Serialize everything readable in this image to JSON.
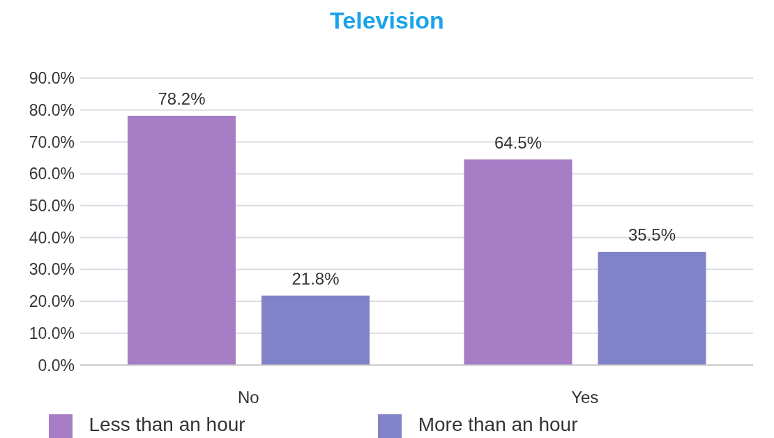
{
  "chart_data": {
    "type": "bar",
    "title": "Television",
    "categories": [
      "No",
      "Yes"
    ],
    "series": [
      {
        "name": "Less than an hour",
        "color": "#a67cc4",
        "values": [
          78.2,
          64.5
        ],
        "value_labels": [
          "78.2%",
          "64.5%"
        ]
      },
      {
        "name": "More than an hour",
        "color": "#8083c8",
        "values": [
          21.8,
          35.5
        ],
        "value_labels": [
          "21.8%",
          "35.5%"
        ]
      }
    ],
    "ylim": [
      0,
      90
    ],
    "yticks": [
      {
        "value": 0,
        "label": "0.0%"
      },
      {
        "value": 10,
        "label": "10.0%"
      },
      {
        "value": 20,
        "label": "20.0%"
      },
      {
        "value": 30,
        "label": "30.0%"
      },
      {
        "value": 40,
        "label": "40.0%"
      },
      {
        "value": 50,
        "label": "50.0%"
      },
      {
        "value": 60,
        "label": "60.0%"
      },
      {
        "value": 70,
        "label": "70.0%"
      },
      {
        "value": 80,
        "label": "80.0%"
      },
      {
        "value": 90,
        "label": "90.0%"
      }
    ],
    "grid": "y",
    "legend": "bottom"
  }
}
